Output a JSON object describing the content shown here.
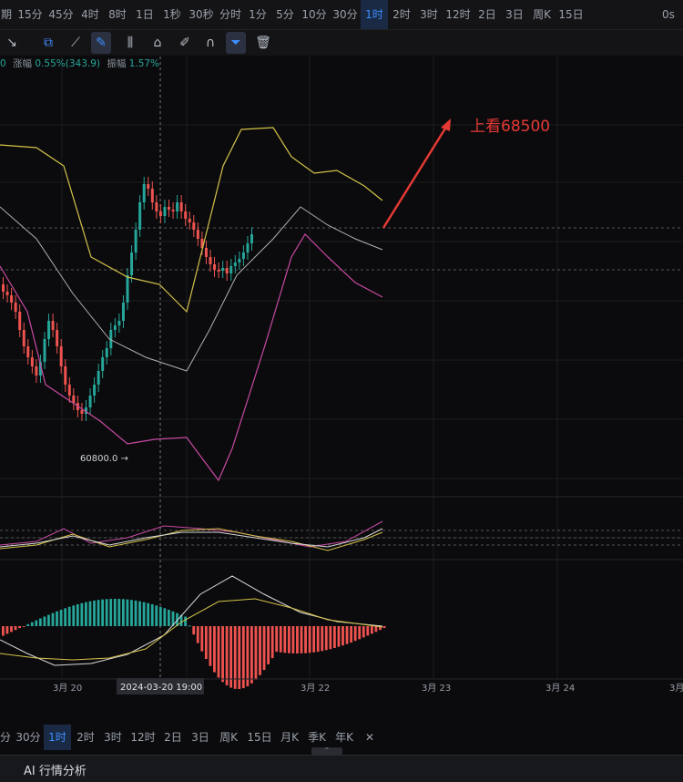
{
  "topbar": {
    "prefix": "期",
    "timeframes": [
      "15分",
      "45分",
      "4时",
      "8时",
      "1日",
      "1秒",
      "30秒",
      "分时",
      "1分",
      "5分",
      "10分",
      "30分",
      "1时",
      "2时",
      "3时",
      "12时",
      "2日",
      "3日",
      "周K",
      "15日"
    ],
    "active": "1时",
    "right": "0s"
  },
  "toolbar": {
    "icons": [
      "cursor-icon",
      "copy-icon",
      "ruler-icon",
      "draw-icon",
      "candles-icon",
      "lock-icon",
      "edit-icon",
      "magnet-icon",
      "filter-icon",
      "trash-icon"
    ],
    "active": [
      "draw-icon",
      "filter-icon"
    ]
  },
  "info": {
    "open_fragment": "0",
    "change_label": "涨幅",
    "change_value": "0.55%(343.9)",
    "amplitude_label": "振幅",
    "amplitude_value": "1.57%"
  },
  "chart_data": {
    "type": "candlestick",
    "annotation": "上看68500",
    "low_label": "60800.0 →",
    "crosshair_time": "2024-03-20 19:00",
    "xaxis_labels": [
      "3月 20",
      "3月 22",
      "3月 23",
      "3月 24",
      "3月"
    ],
    "colors": {
      "up": "#26a69a",
      "down": "#ef5350",
      "annotation": "#e53935",
      "boll_upper": "#d4c34a",
      "boll_mid": "#b0b0b0",
      "boll_lower": "#c94aa3",
      "macd_dif": "#d8d8d8",
      "macd_dea": "#d4c34a"
    }
  },
  "bottombar": {
    "items": [
      "分",
      "30分",
      "1时",
      "2时",
      "3时",
      "12时",
      "2日",
      "3日",
      "周K",
      "15日",
      "月K",
      "季K",
      "年K"
    ],
    "active": "1时",
    "close": "✕",
    "handle": "⌃"
  },
  "footer": {
    "title": "AI 行情分析"
  }
}
